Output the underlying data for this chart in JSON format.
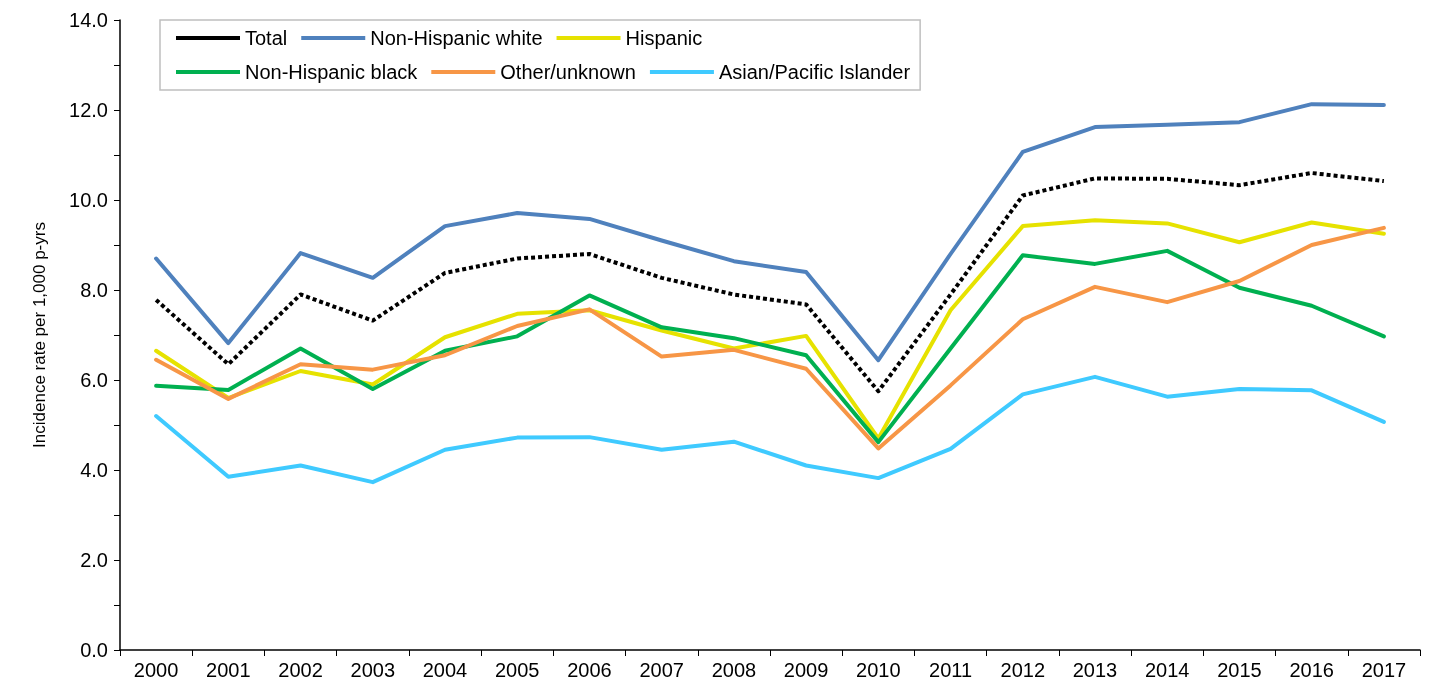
{
  "chart_data": {
    "type": "line",
    "ylabel": "Incidence rate per 1,000 p-yrs",
    "categories": [
      "2000",
      "2001",
      "2002",
      "2003",
      "2004",
      "2005",
      "2006",
      "2007",
      "2008",
      "2009",
      "2010",
      "2011",
      "2012",
      "2013",
      "2014",
      "2015",
      "2016",
      "2017"
    ],
    "ylim": [
      0,
      14
    ],
    "yticks": [
      {
        "value": 0,
        "label": "0.0"
      },
      {
        "value": 1,
        "label": null
      },
      {
        "value": 2,
        "label": "2.0"
      },
      {
        "value": 3,
        "label": null
      },
      {
        "value": 4,
        "label": "4.0"
      },
      {
        "value": 5,
        "label": null
      },
      {
        "value": 6,
        "label": "6.0"
      },
      {
        "value": 7,
        "label": null
      },
      {
        "value": 8,
        "label": "8.0"
      },
      {
        "value": 9,
        "label": null
      },
      {
        "value": 10,
        "label": "10.0"
      },
      {
        "value": 11,
        "label": null
      },
      {
        "value": 12,
        "label": "12.0"
      },
      {
        "value": 13,
        "label": null
      },
      {
        "value": 14,
        "label": "14.0"
      }
    ],
    "grid": false,
    "legend": "top left",
    "marker": "none",
    "series": [
      {
        "name": "Total",
        "color": "#000000",
        "line_style": "dashed",
        "values": [
          7.78,
          6.35,
          7.9,
          7.32,
          8.38,
          8.7,
          8.8,
          8.27,
          7.9,
          7.68,
          5.75,
          7.9,
          10.1,
          10.48,
          10.47,
          10.33,
          10.6,
          10.42
        ]
      },
      {
        "name": "Non-Hispanic white",
        "color": "#4f81bd",
        "line_style": "solid",
        "values": [
          8.7,
          6.82,
          8.82,
          8.27,
          9.42,
          9.71,
          9.58,
          9.1,
          8.64,
          8.4,
          6.44,
          8.8,
          11.07,
          11.62,
          11.67,
          11.73,
          12.13,
          12.11
        ]
      },
      {
        "name": "Hispanic",
        "color": "#e6e200",
        "line_style": "solid",
        "values": [
          6.65,
          5.6,
          6.2,
          5.9,
          6.95,
          7.47,
          7.55,
          7.1,
          6.7,
          6.98,
          4.7,
          7.55,
          9.42,
          9.55,
          9.48,
          9.06,
          9.5,
          9.25
        ]
      },
      {
        "name": "Non-Hispanic black",
        "color": "#00b050",
        "line_style": "solid",
        "values": [
          5.87,
          5.78,
          6.7,
          5.8,
          6.65,
          6.97,
          7.88,
          7.17,
          6.93,
          6.55,
          4.62,
          6.7,
          8.77,
          8.58,
          8.87,
          8.05,
          7.65,
          6.97
        ]
      },
      {
        "name": "Other/unknown",
        "color": "#f79646",
        "line_style": "solid",
        "values": [
          6.45,
          5.58,
          6.35,
          6.23,
          6.55,
          7.2,
          7.57,
          6.52,
          6.67,
          6.25,
          4.48,
          5.88,
          7.35,
          8.07,
          7.73,
          8.2,
          9.0,
          9.38
        ]
      },
      {
        "name": "Asian/Pacific Islander",
        "color": "#3fcaff",
        "line_style": "solid",
        "values": [
          5.2,
          3.85,
          4.1,
          3.73,
          4.45,
          4.72,
          4.73,
          4.45,
          4.63,
          4.1,
          3.82,
          4.47,
          5.68,
          6.07,
          5.63,
          5.8,
          5.77,
          5.07
        ]
      }
    ]
  }
}
